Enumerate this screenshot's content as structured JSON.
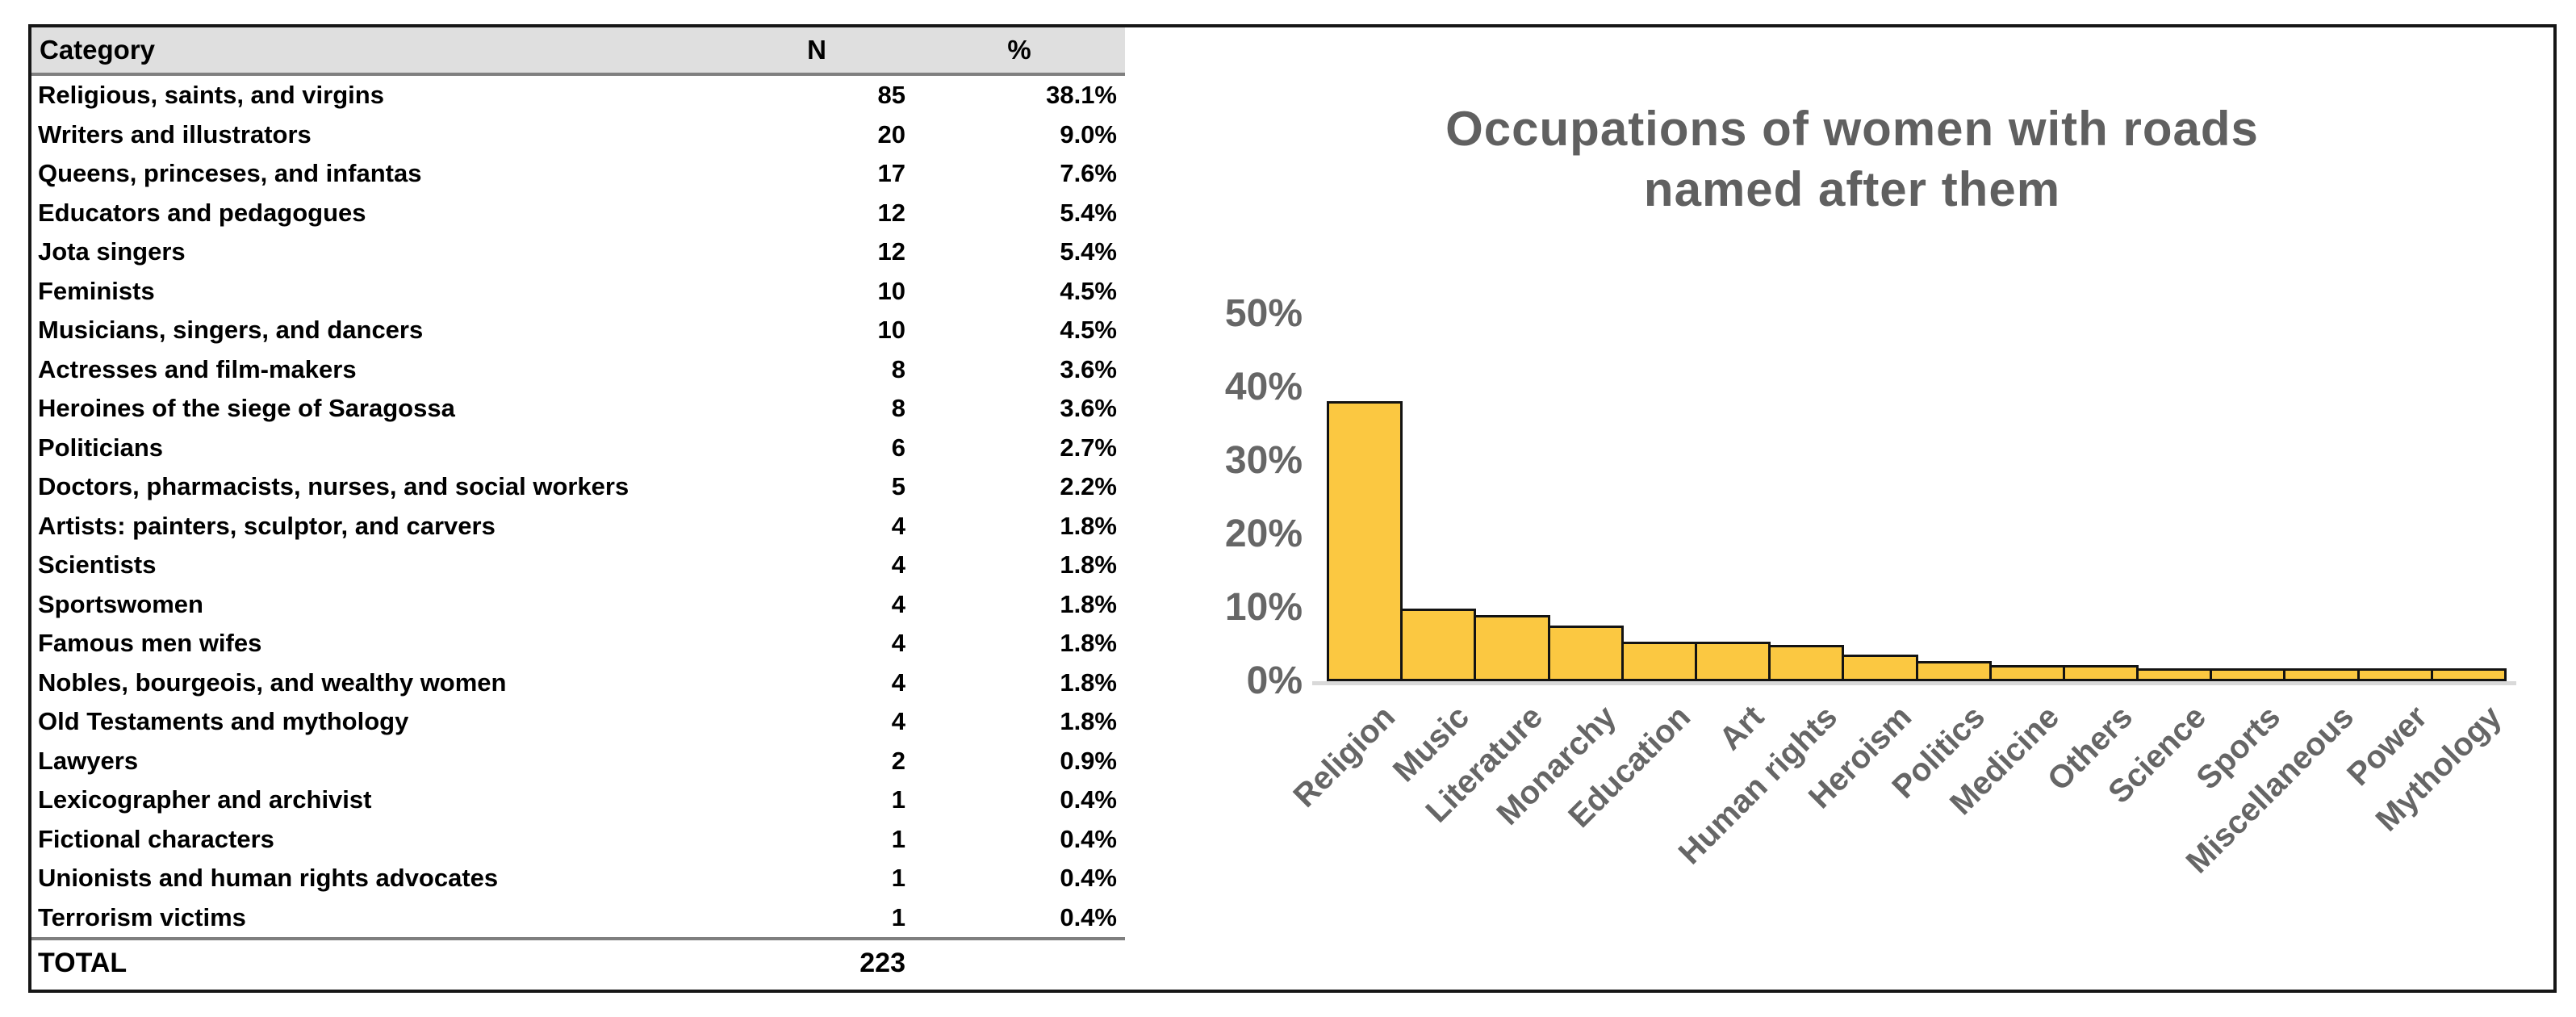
{
  "table": {
    "headers": {
      "category": "Category",
      "n": "N",
      "pct": "%"
    },
    "rows": [
      {
        "category": "Religious, saints, and virgins",
        "n": "85",
        "pct": "38.1%"
      },
      {
        "category": "Writers and illustrators",
        "n": "20",
        "pct": "9.0%"
      },
      {
        "category": "Queens, princeses, and infantas",
        "n": "17",
        "pct": "7.6%"
      },
      {
        "category": "Educators and pedagogues",
        "n": "12",
        "pct": "5.4%"
      },
      {
        "category": "Jota singers",
        "n": "12",
        "pct": "5.4%"
      },
      {
        "category": "Feminists",
        "n": "10",
        "pct": "4.5%"
      },
      {
        "category": "Musicians, singers, and dancers",
        "n": "10",
        "pct": "4.5%"
      },
      {
        "category": "Actresses and film-makers",
        "n": "8",
        "pct": "3.6%"
      },
      {
        "category": "Heroines of the siege of Saragossa",
        "n": "8",
        "pct": "3.6%"
      },
      {
        "category": "Politicians",
        "n": "6",
        "pct": "2.7%"
      },
      {
        "category": "Doctors, pharmacists, nurses, and social workers",
        "n": "5",
        "pct": "2.2%"
      },
      {
        "category": "Artists: painters, sculptor, and carvers",
        "n": "4",
        "pct": "1.8%"
      },
      {
        "category": "Scientists",
        "n": "4",
        "pct": "1.8%"
      },
      {
        "category": "Sportswomen",
        "n": "4",
        "pct": "1.8%"
      },
      {
        "category": "Famous men wifes",
        "n": "4",
        "pct": "1.8%"
      },
      {
        "category": "Nobles, bourgeois, and wealthy women",
        "n": "4",
        "pct": "1.8%"
      },
      {
        "category": "Old Testaments and mythology",
        "n": "4",
        "pct": "1.8%"
      },
      {
        "category": "Lawyers",
        "n": "2",
        "pct": "0.9%"
      },
      {
        "category": "Lexicographer and archivist",
        "n": "1",
        "pct": "0.4%"
      },
      {
        "category": "Fictional characters",
        "n": "1",
        "pct": "0.4%"
      },
      {
        "category": "Unionists and human rights advocates",
        "n": "1",
        "pct": "0.4%"
      },
      {
        "category": "Terrorism victims",
        "n": "1",
        "pct": "0.4%"
      }
    ],
    "total": {
      "label": "TOTAL",
      "n": "223",
      "pct": ""
    }
  },
  "chart_data": {
    "type": "bar",
    "title": "Occupations of women with roads named after them",
    "title_lines": [
      "Occupations of women with roads",
      "named after them"
    ],
    "categories": [
      "Religion",
      "Music",
      "Literature",
      "Monarchy",
      "Education",
      "Art",
      "Human rights",
      "Heroism",
      "Politics",
      "Medicine",
      "Others",
      "Science",
      "Sports",
      "Miscellaneous",
      "Power",
      "Mythology"
    ],
    "values": [
      38.1,
      9.9,
      9.0,
      7.6,
      5.4,
      5.4,
      4.9,
      3.6,
      2.7,
      2.2,
      2.2,
      1.8,
      1.8,
      1.8,
      1.8,
      1.8
    ],
    "unit": "%",
    "xlabel": "",
    "ylabel": "",
    "ylim": [
      0,
      50
    ],
    "yticks": [
      "50%",
      "40%",
      "30%",
      "20%",
      "10%",
      "0%"
    ],
    "ytick_values": [
      50,
      40,
      30,
      20,
      10,
      0
    ],
    "grid": false,
    "legend": null,
    "bar_color": "#fbc841",
    "bar_border_color": "#131313",
    "text_color": "#666666",
    "title_color": "#606060"
  }
}
